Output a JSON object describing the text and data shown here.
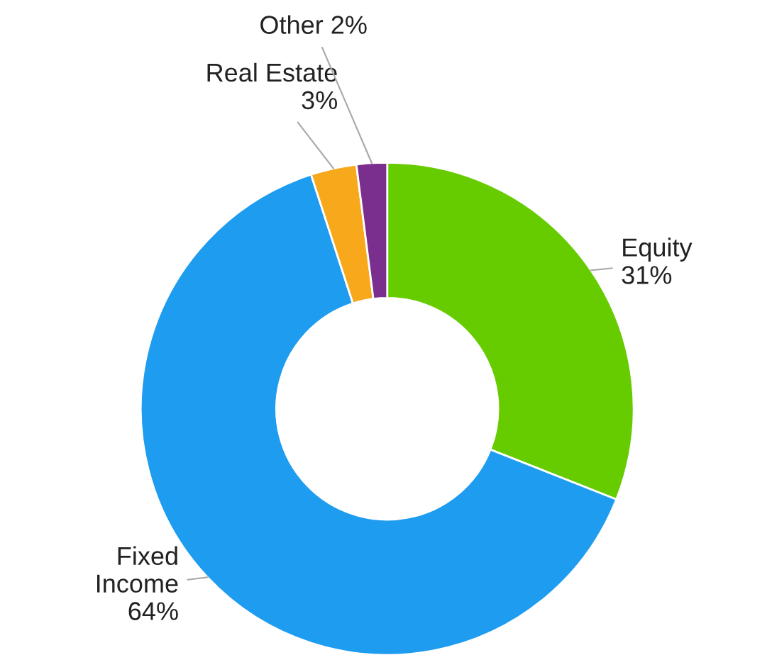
{
  "chart_data": {
    "type": "donut",
    "categories": [
      "Equity",
      "Fixed Income",
      "Real Estate",
      "Other"
    ],
    "values": [
      31,
      64,
      3,
      2
    ],
    "colors": [
      "#66cc00",
      "#1e9cf0",
      "#f7a81b",
      "#7a2e8e"
    ],
    "value_labels": [
      "31%",
      "64%",
      "3%",
      "2%"
    ],
    "legend": false
  }
}
